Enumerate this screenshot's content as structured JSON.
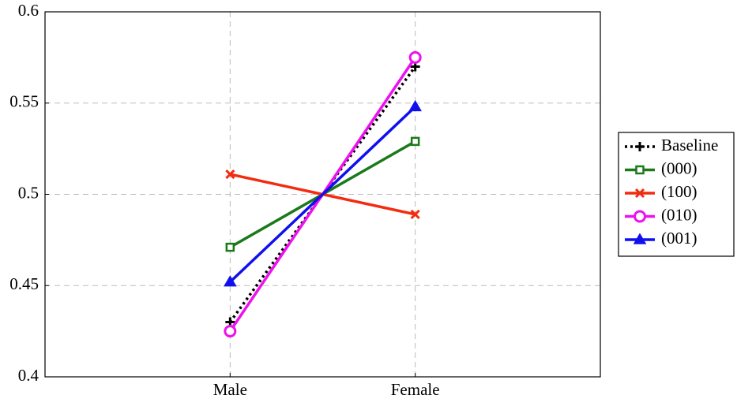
{
  "chart_data": {
    "type": "line",
    "categories": [
      "Male",
      "Female"
    ],
    "series": [
      {
        "name": "Baseline",
        "color": "#000000",
        "marker": "plus",
        "dash": "dotted",
        "values": [
          0.43,
          0.57
        ]
      },
      {
        "name": "(000)",
        "color": "#1a7a1a",
        "marker": "square",
        "values": [
          0.471,
          0.529
        ]
      },
      {
        "name": "(100)",
        "color": "#f22c10",
        "marker": "cross",
        "values": [
          0.511,
          0.489
        ]
      },
      {
        "name": "(010)",
        "color": "#ee11ee",
        "marker": "circle",
        "values": [
          0.425,
          0.575
        ]
      },
      {
        "name": "(001)",
        "color": "#1010ee",
        "marker": "triangle",
        "values": [
          0.452,
          0.548
        ]
      }
    ],
    "ylim": [
      0.4,
      0.6
    ],
    "yticks": [
      0.4,
      0.45,
      0.5,
      0.55,
      0.6
    ],
    "grid": true,
    "legend": "outside right"
  }
}
